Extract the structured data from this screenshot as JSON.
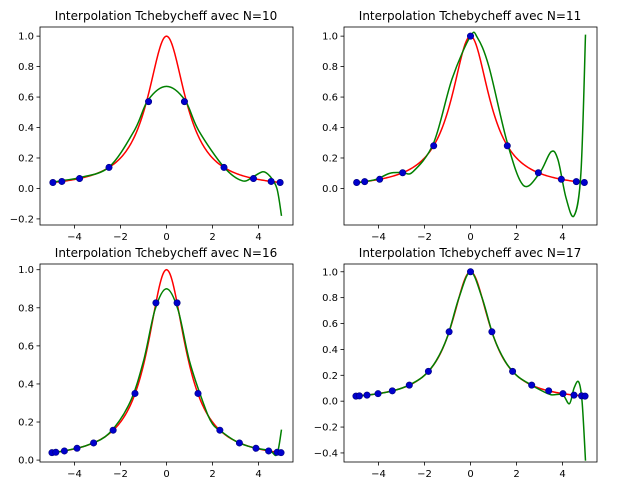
{
  "chart_data": [
    {
      "type": "line",
      "title": "Interpolation Tchebycheff avec N=10",
      "xlim": [
        -5.5,
        5.5
      ],
      "ylim": [
        -0.24,
        1.06
      ],
      "xticks": [
        -4,
        -2,
        0,
        2,
        4
      ],
      "yticks": [
        -0.2,
        0.0,
        0.2,
        0.4,
        0.6,
        0.8,
        1.0
      ],
      "x_range": [
        -5,
        5
      ],
      "grid": false,
      "series": [
        {
          "role": "function",
          "color": "#ff0000",
          "expression": "1/(1+x^2)"
        },
        {
          "role": "interpolant",
          "color": "#008000",
          "x": [
            -5,
            -4.8,
            -4.4,
            -3.8,
            -2.5,
            -1.4,
            -0.8,
            0,
            0.8,
            1.4,
            2.5,
            3.3,
            3.8,
            4.2,
            4.5,
            4.8,
            5
          ],
          "y": [
            0.04,
            0.045,
            0.055,
            0.07,
            0.14,
            0.38,
            0.58,
            0.67,
            0.58,
            0.38,
            0.14,
            0.05,
            0.08,
            0.11,
            0.08,
            0.0,
            -0.18
          ]
        },
        {
          "role": "nodes",
          "color": "#0000cc",
          "x": [
            -4.94,
            -4.55,
            -3.78,
            -2.5,
            -0.78,
            0.78,
            2.5,
            3.78,
            4.55,
            4.94
          ],
          "y": [
            0.039,
            0.046,
            0.065,
            0.138,
            0.57,
            0.57,
            0.138,
            0.065,
            0.046,
            0.039
          ]
        }
      ]
    },
    {
      "type": "line",
      "title": "Interpolation Tchebycheff avec N=11",
      "xlim": [
        -5.5,
        5.5
      ],
      "ylim": [
        -0.24,
        1.06
      ],
      "xticks": [
        -4,
        -2,
        0,
        2,
        4
      ],
      "yticks": [
        0.0,
        0.2,
        0.4,
        0.6,
        0.8,
        1.0
      ],
      "x_range": [
        -5,
        5
      ],
      "grid": false,
      "series": [
        {
          "role": "function",
          "color": "#ff0000",
          "expression": "1/(1+x^2)"
        },
        {
          "role": "interpolant",
          "color": "#008000",
          "x": [
            -5,
            -4.8,
            -4.1,
            -3.5,
            -2.95,
            -2.5,
            -1.6,
            -0.8,
            0,
            0.3,
            0.8,
            1.6,
            2.3,
            3.0,
            3.5,
            3.8,
            4.15,
            4.5,
            4.8,
            5
          ],
          "y": [
            0.04,
            0.04,
            0.06,
            0.1,
            0.105,
            0.11,
            0.3,
            0.72,
            1.0,
            0.99,
            0.8,
            0.3,
            0.02,
            0.1,
            0.24,
            0.19,
            -0.06,
            -0.18,
            0.1,
            1.01
          ]
        },
        {
          "role": "nodes",
          "color": "#0000cc",
          "x": [
            -4.95,
            -4.6,
            -3.95,
            -2.95,
            -1.6,
            0,
            1.6,
            2.95,
            3.95,
            4.6,
            4.95
          ],
          "y": [
            0.039,
            0.045,
            0.06,
            0.103,
            0.28,
            1.0,
            0.28,
            0.103,
            0.06,
            0.045,
            0.039
          ]
        }
      ]
    },
    {
      "type": "line",
      "title": "Interpolation Tchebycheff avec N=16",
      "xlim": [
        -5.5,
        5.5
      ],
      "ylim": [
        -0.01,
        1.03
      ],
      "xticks": [
        -4,
        -2,
        0,
        2,
        4
      ],
      "yticks": [
        0.0,
        0.2,
        0.4,
        0.6,
        0.8,
        1.0
      ],
      "x_range": [
        -5,
        5
      ],
      "grid": false,
      "series": [
        {
          "role": "function",
          "color": "#ff0000",
          "expression": "1/(1+x^2)"
        },
        {
          "role": "interpolant",
          "color": "#008000",
          "x": [
            -5,
            -4.6,
            -4.0,
            -3.4,
            -2.5,
            -1.6,
            -1.0,
            -0.5,
            0,
            0.5,
            1.0,
            1.6,
            2.0,
            2.5,
            3.0,
            3.5,
            4.0,
            4.5,
            4.8,
            5
          ],
          "y": [
            0.04,
            0.045,
            0.06,
            0.08,
            0.14,
            0.3,
            0.52,
            0.79,
            0.9,
            0.79,
            0.52,
            0.3,
            0.19,
            0.14,
            0.1,
            0.075,
            0.06,
            0.05,
            0.03,
            0.16
          ]
        },
        {
          "role": "nodes",
          "color": "#0000cc",
          "x": [
            -4.98,
            -4.81,
            -4.44,
            -3.89,
            -3.17,
            -2.32,
            -1.37,
            -0.46,
            0.46,
            1.37,
            2.32,
            3.17,
            3.89,
            4.44,
            4.81,
            4.98
          ],
          "y": [
            0.039,
            0.041,
            0.048,
            0.062,
            0.09,
            0.157,
            0.35,
            0.826,
            0.826,
            0.35,
            0.157,
            0.09,
            0.062,
            0.048,
            0.041,
            0.039
          ]
        }
      ]
    },
    {
      "type": "line",
      "title": "Interpolation Tchebycheff avec N=17",
      "xlim": [
        -5.5,
        5.5
      ],
      "ylim": [
        -0.47,
        1.06
      ],
      "xticks": [
        -4,
        -2,
        0,
        2,
        4
      ],
      "yticks": [
        -0.4,
        -0.2,
        0.0,
        0.2,
        0.4,
        0.6,
        0.8,
        1.0
      ],
      "x_range": [
        -5,
        5
      ],
      "grid": false,
      "series": [
        {
          "role": "function",
          "color": "#ff0000",
          "expression": "1/(1+x^2)"
        },
        {
          "role": "interpolant",
          "color": "#008000",
          "x": [
            -5,
            -4.5,
            -4.0,
            -3.5,
            -3.0,
            -2.5,
            -2.0,
            -1.5,
            -1.0,
            -0.5,
            0,
            0.5,
            1.0,
            1.5,
            2.0,
            2.5,
            3.0,
            3.5,
            4.0,
            4.3,
            4.5,
            4.7,
            4.85,
            5
          ],
          "y": [
            0.04,
            0.047,
            0.058,
            0.075,
            0.1,
            0.14,
            0.2,
            0.31,
            0.5,
            0.8,
            1.0,
            0.8,
            0.5,
            0.31,
            0.2,
            0.14,
            0.09,
            0.05,
            0.05,
            -0.02,
            0.1,
            0.15,
            0.0,
            -0.46
          ]
        },
        {
          "role": "nodes",
          "color": "#0000cc",
          "x": [
            -4.98,
            -4.83,
            -4.5,
            -4.02,
            -3.4,
            -2.66,
            -1.83,
            -0.93,
            0,
            0.93,
            1.83,
            2.66,
            3.4,
            4.02,
            4.5,
            4.83,
            4.98
          ],
          "y": [
            0.039,
            0.041,
            0.047,
            0.058,
            0.08,
            0.124,
            0.23,
            0.536,
            1.0,
            0.536,
            0.23,
            0.124,
            0.08,
            0.058,
            0.047,
            0.041,
            0.039
          ]
        }
      ]
    }
  ]
}
